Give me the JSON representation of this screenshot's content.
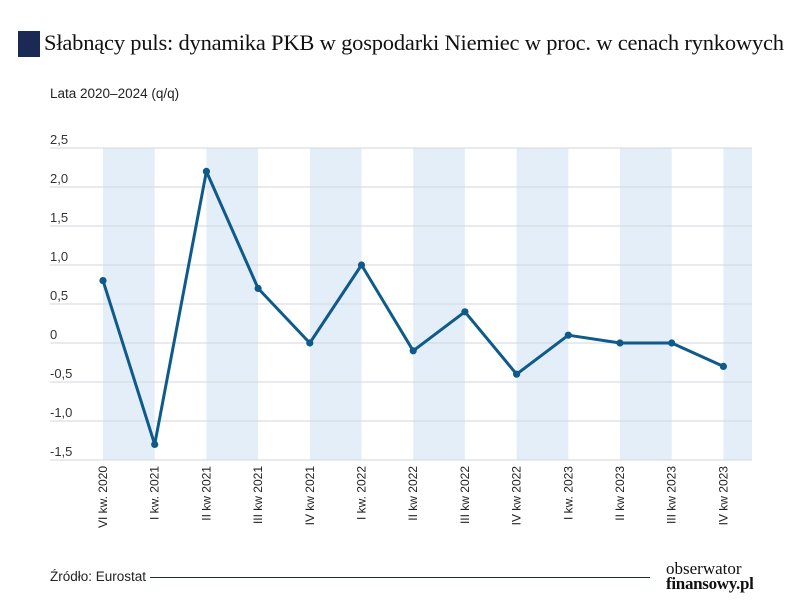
{
  "header": {
    "title": "Słabnący puls: dynamika PKB w gospodarki Niemiec w proc. w cenach rynkowych",
    "subtitle": "Lata 2020–2024 (q/q)"
  },
  "footer": {
    "source": "Źródło: Eurostat",
    "logo_line1": "obserwator",
    "logo_line2": "finansowy.pl"
  },
  "colors": {
    "line": "#0e5a8a",
    "band": "#e3eef9",
    "grid": "#d2d6dc",
    "title_mark": "#1b2a55"
  },
  "chart_data": {
    "type": "line",
    "categories": [
      "VI kw. 2020",
      "I kw. 2021",
      "II kw 2021",
      "III kw 2021",
      "IV kw 2021",
      "I kw. 2022",
      "II kw 2022",
      "III kw 2022",
      "IV kw 2022",
      "I kw. 2023",
      "II kw 2023",
      "III kw 2023",
      "IV kw 2023"
    ],
    "values": [
      0.8,
      -1.3,
      2.2,
      0.7,
      0.0,
      1.0,
      -0.1,
      0.4,
      -0.4,
      0.1,
      0.0,
      0.0,
      -0.3
    ],
    "yticks": [
      "2,5",
      "2,0",
      "1,5",
      "1,0",
      "0,5",
      "0",
      "-0,5",
      "-1,0",
      "-1,5"
    ],
    "ylim": [
      -1.5,
      2.5
    ],
    "grid": true,
    "legend": "none"
  }
}
